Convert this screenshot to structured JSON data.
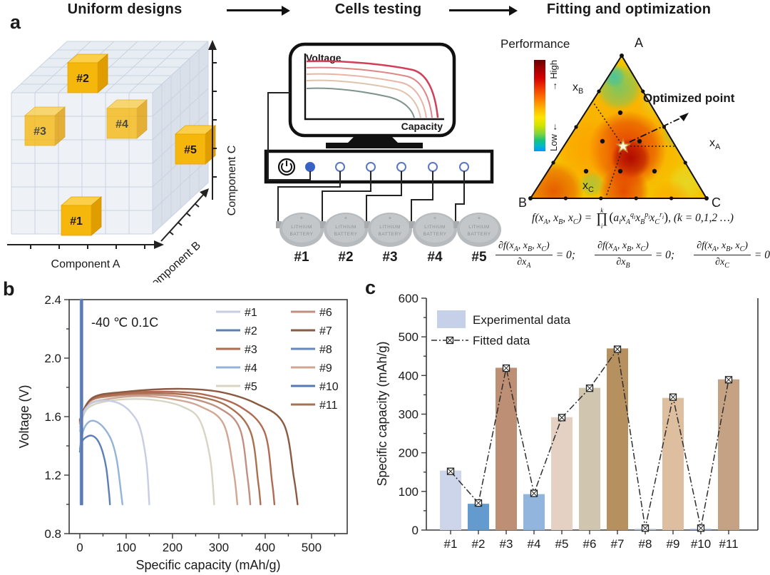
{
  "header": {
    "steps": [
      "Uniform designs",
      "Cells testing",
      "Fitting and optimization"
    ]
  },
  "panel_labels": {
    "a": "a",
    "b": "b",
    "c": "c"
  },
  "panel_a": {
    "design": {
      "axis_a": "Component A",
      "axis_b": "Component B",
      "axis_c": "Component C",
      "samples": [
        {
          "label": "#1",
          "x": 78,
          "y": 240,
          "dim": false
        },
        {
          "label": "#2",
          "x": 87,
          "y": 40,
          "dim": false
        },
        {
          "label": "#3",
          "x": 27,
          "y": 114,
          "dim": true
        },
        {
          "label": "#4",
          "x": 142,
          "y": 104,
          "dim": true
        },
        {
          "label": "#5",
          "x": 238,
          "y": 140,
          "dim": false
        }
      ]
    },
    "testing": {
      "screen_ylabel": "Voltage",
      "screen_xlabel": "Capacity",
      "screen_curve_colors": [
        "#d04058",
        "#e08585",
        "#eab4a6",
        "#e0c3ac",
        "#7e948c"
      ],
      "battery_line1": "LITHIUM",
      "battery_line2": "BATTERY",
      "battery_plus": "+",
      "cell_labels": [
        "#1",
        "#2",
        "#3",
        "#4",
        "#5"
      ]
    },
    "ternary": {
      "colorbar_title": "Performance",
      "high": "High",
      "low": "Low",
      "arrow_right": "→",
      "arrow_left": "←",
      "corner_a": "A",
      "corner_b": "B",
      "corner_c": "C",
      "xa": "x<sub>A</sub>",
      "xb": "x<sub>B</sub>",
      "xc": "x<sub>C</sub>",
      "annotation": "Optimized point",
      "interior_points": [
        [
          145,
          98
        ],
        [
          120,
          138
        ],
        [
          172,
          138
        ],
        [
          97,
          180
        ],
        [
          145,
          180
        ],
        [
          193,
          180
        ]
      ],
      "star": [
        149,
        145
      ]
    },
    "equations": {
      "main": "f(x<sub>A</sub>, x<sub>B</sub>, x<sub>C</sub>) = <span class='prod'><span class='lim'>k</span><span class='pi'>∏</span><span class='lim'>i</span></span><span class='par'>(</span>a<sub>i</sub>x<sub>A</sub><sup>q<sub>i</sub></sup>x<sub>B</sub><sup>p<sub>i</sub></sup>x<sub>C</sub><sup>r<sub>i</sub></sup><span class='par'>)</span>, (k = 0,1,2 …)",
      "partials": [
        {
          "num": "∂f(x<sub>A</sub>, x<sub>B</sub>, x<sub>C</sub>)",
          "den": "∂x<sub>A</sub>",
          "rhs": "= 0;"
        },
        {
          "num": "∂f(x<sub>A</sub>, x<sub>B</sub>, x<sub>C</sub>)",
          "den": "∂x<sub>B</sub>",
          "rhs": "= 0;"
        },
        {
          "num": "∂f(x<sub>A</sub>, x<sub>B</sub>, x<sub>C</sub>)",
          "den": "∂x<sub>C</sub>",
          "rhs": "= 0"
        }
      ]
    }
  },
  "chart_data": [
    {
      "id": "panel-b",
      "type": "line",
      "annotation": "-40 ℃ 0.1C",
      "xlabel": "Specific capacity (mAh/g)",
      "ylabel": "Voltage (V)",
      "xlim": [
        -23,
        577
      ],
      "ylim": [
        0.8,
        2.4
      ],
      "xticks": [
        0,
        100,
        200,
        300,
        400,
        500
      ],
      "xminor_step": 50,
      "yticks": [
        "0.8",
        "1.2",
        "1.6",
        "2.0",
        "2.4"
      ],
      "yminor_step": 0.2,
      "series": [
        {
          "name": "#1",
          "color": "#c7cee4",
          "points": [
            [
              0,
              1.5
            ],
            [
              8,
              1.63
            ],
            [
              25,
              1.69
            ],
            [
              55,
              1.71
            ],
            [
              85,
              1.69
            ],
            [
              110,
              1.63
            ],
            [
              130,
              1.52
            ],
            [
              144,
              1.28
            ],
            [
              150,
              1.0
            ]
          ]
        },
        {
          "name": "#2",
          "color": "#5c7fb8",
          "points": [
            [
              0,
              1.36
            ],
            [
              5,
              1.43
            ],
            [
              14,
              1.46
            ],
            [
              26,
              1.47
            ],
            [
              38,
              1.44
            ],
            [
              48,
              1.37
            ],
            [
              57,
              1.25
            ],
            [
              63,
              1.08
            ],
            [
              65,
              1.0
            ]
          ]
        },
        {
          "name": "#3",
          "color": "#b26a52",
          "points": [
            [
              0,
              1.57
            ],
            [
              25,
              1.72
            ],
            [
              90,
              1.76
            ],
            [
              190,
              1.77
            ],
            [
              270,
              1.75
            ],
            [
              345,
              1.67
            ],
            [
              398,
              1.5
            ],
            [
              415,
              1.15
            ],
            [
              420,
              1.0
            ]
          ]
        },
        {
          "name": "#4",
          "color": "#94b3d9",
          "points": [
            [
              0,
              1.38
            ],
            [
              7,
              1.5
            ],
            [
              18,
              1.56
            ],
            [
              32,
              1.57
            ],
            [
              50,
              1.53
            ],
            [
              68,
              1.44
            ],
            [
              80,
              1.3
            ],
            [
              89,
              1.08
            ],
            [
              92,
              1.0
            ]
          ]
        },
        {
          "name": "#5",
          "color": "#d8d4c3",
          "points": [
            [
              0,
              1.53
            ],
            [
              15,
              1.65
            ],
            [
              50,
              1.7
            ],
            [
              110,
              1.72
            ],
            [
              170,
              1.71
            ],
            [
              220,
              1.67
            ],
            [
              258,
              1.58
            ],
            [
              281,
              1.32
            ],
            [
              290,
              1.0
            ]
          ]
        },
        {
          "name": "#6",
          "color": "#c29080",
          "points": [
            [
              0,
              1.56
            ],
            [
              20,
              1.7
            ],
            [
              70,
              1.74
            ],
            [
              150,
              1.75
            ],
            [
              230,
              1.73
            ],
            [
              300,
              1.66
            ],
            [
              345,
              1.52
            ],
            [
              362,
              1.18
            ],
            [
              368,
              1.0
            ]
          ]
        },
        {
          "name": "#7",
          "color": "#8a5a42",
          "points": [
            [
              0,
              1.58
            ],
            [
              28,
              1.73
            ],
            [
              100,
              1.77
            ],
            [
              210,
              1.79
            ],
            [
              300,
              1.77
            ],
            [
              380,
              1.69
            ],
            [
              440,
              1.55
            ],
            [
              462,
              1.18
            ],
            [
              470,
              1.0
            ]
          ]
        },
        {
          "name": "#8",
          "color": "#6587bd",
          "points": [
            [
              2,
              2.4
            ],
            [
              2,
              1.0
            ]
          ]
        },
        {
          "name": "#9",
          "color": "#d1a693",
          "points": [
            [
              0,
              1.55
            ],
            [
              18,
              1.68
            ],
            [
              60,
              1.72
            ],
            [
              130,
              1.74
            ],
            [
              200,
              1.72
            ],
            [
              260,
              1.67
            ],
            [
              310,
              1.55
            ],
            [
              332,
              1.22
            ],
            [
              340,
              1.0
            ]
          ]
        },
        {
          "name": "#10",
          "color": "#5678b2",
          "points": [
            [
              5,
              2.4
            ],
            [
              5,
              1.0
            ]
          ]
        },
        {
          "name": "#11",
          "color": "#a9714f",
          "points": [
            [
              0,
              1.57
            ],
            [
              22,
              1.71
            ],
            [
              80,
              1.75
            ],
            [
              170,
              1.76
            ],
            [
              250,
              1.74
            ],
            [
              320,
              1.67
            ],
            [
              368,
              1.5
            ],
            [
              385,
              1.15
            ],
            [
              390,
              1.0
            ]
          ]
        }
      ]
    },
    {
      "id": "panel-c",
      "type": "bar",
      "ylabel": "Specific capacity (mAh/g)",
      "ylim": [
        0,
        600
      ],
      "yticks": [
        0,
        100,
        200,
        300,
        400,
        500,
        600
      ],
      "yminor_step": 50,
      "categories": [
        "#1",
        "#2",
        "#3",
        "#4",
        "#5",
        "#6",
        "#7",
        "#8",
        "#9",
        "#10",
        "#11"
      ],
      "bar_values": [
        154,
        68,
        420,
        93,
        292,
        368,
        470,
        2,
        342,
        2,
        390
      ],
      "bar_colors": [
        "#ccd5ea",
        "#649bce",
        "#bd8f74",
        "#92b5de",
        "#e4d1c3",
        "#d0c6b0",
        "#b6905e",
        "#9db8d8",
        "#ddbf9f",
        "#7f9cc6",
        "#c5a284"
      ],
      "fitted_values": [
        152,
        70,
        419,
        95,
        291,
        367,
        468,
        5,
        344,
        5,
        389
      ],
      "legend": [
        {
          "label": "Experimental data",
          "swatch": "#c6d0e8"
        },
        {
          "label": "Fitted data"
        }
      ]
    }
  ]
}
